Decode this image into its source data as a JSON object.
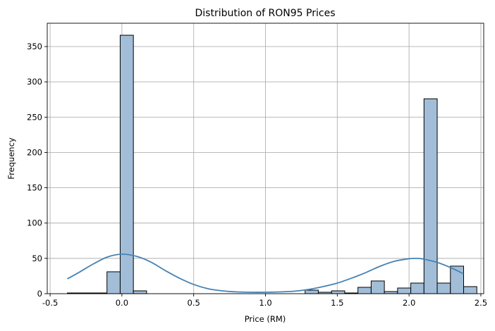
{
  "chart_data": {
    "type": "bar",
    "title": "Distribution of RON95 Prices",
    "xlabel": "Price (RM)",
    "ylabel": "Frequency",
    "xlim": [
      -0.52,
      2.52
    ],
    "ylim": [
      0,
      383
    ],
    "xticks": [
      {
        "value": -0.5,
        "label": "-0.5"
      },
      {
        "value": 0.0,
        "label": "0.0"
      },
      {
        "value": 0.5,
        "label": "0.5"
      },
      {
        "value": 1.0,
        "label": "1.0"
      },
      {
        "value": 1.5,
        "label": "1.5"
      },
      {
        "value": 2.0,
        "label": "2.0"
      },
      {
        "value": 2.5,
        "label": "2.5"
      }
    ],
    "yticks": [
      {
        "value": 0,
        "label": "0"
      },
      {
        "value": 50,
        "label": "50"
      },
      {
        "value": 100,
        "label": "100"
      },
      {
        "value": 150,
        "label": "150"
      },
      {
        "value": 200,
        "label": "200"
      },
      {
        "value": 250,
        "label": "250"
      },
      {
        "value": 300,
        "label": "300"
      },
      {
        "value": 350,
        "label": "350"
      }
    ],
    "grid": true,
    "colors": {
      "bar_fill": "#a2bdd7",
      "bar_edge": "#000000",
      "kde_line": "#4682b4"
    },
    "bins": {
      "start": -0.38,
      "width": 0.092
    },
    "counts": [
      1,
      1,
      1,
      31,
      366,
      4,
      0,
      0,
      0,
      0,
      0,
      0,
      0,
      0,
      0,
      0,
      0,
      0,
      5,
      2,
      4,
      1,
      9,
      18,
      3,
      8,
      15,
      276,
      15,
      39,
      10
    ],
    "kde": {
      "x": [
        -0.38,
        -0.3,
        -0.2,
        -0.1,
        0.0,
        0.1,
        0.2,
        0.3,
        0.4,
        0.5,
        0.6,
        0.7,
        0.8,
        0.9,
        1.0,
        1.1,
        1.2,
        1.3,
        1.4,
        1.5,
        1.6,
        1.7,
        1.8,
        1.9,
        2.0,
        2.05,
        2.1,
        2.2,
        2.3,
        2.38
      ],
      "y": [
        21,
        30,
        42,
        52,
        56,
        53,
        45,
        33,
        22,
        13,
        7,
        4,
        2.5,
        2,
        2,
        2.5,
        3.5,
        6,
        10,
        15,
        22,
        30,
        39,
        46,
        49.5,
        50,
        49,
        44,
        36,
        28
      ]
    }
  }
}
